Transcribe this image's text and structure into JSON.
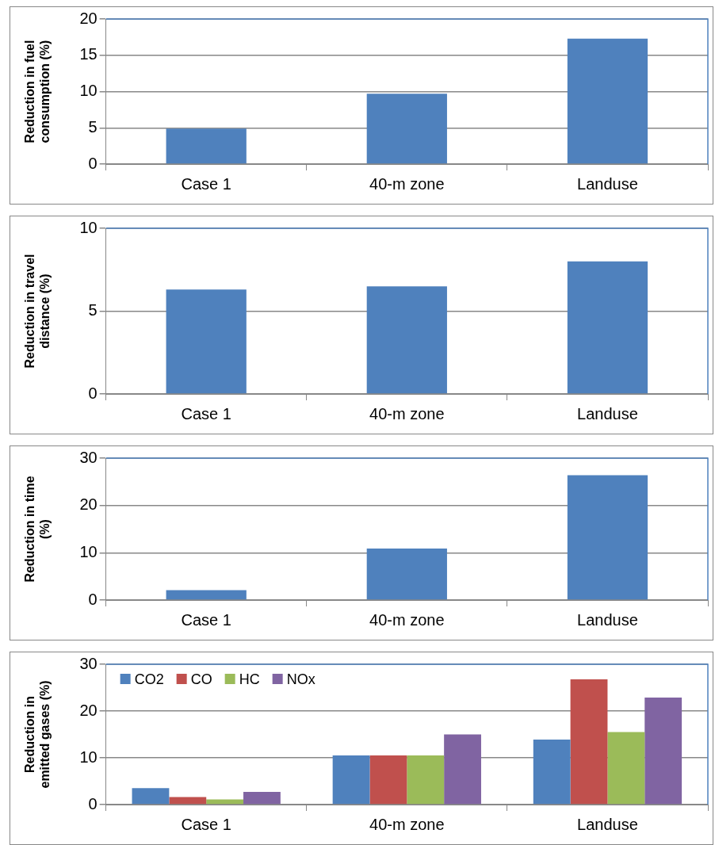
{
  "chart_data": [
    {
      "type": "bar",
      "ylabel": "Reduction in fuel consumption (%)",
      "categories": [
        "Case 1",
        "40-m zone",
        "Landuse"
      ],
      "values": [
        4.9,
        9.7,
        17.3
      ],
      "color": "#4f81bd",
      "ylim": [
        0,
        20
      ],
      "yticks": [
        0,
        5,
        10,
        15,
        20
      ],
      "grid": "y"
    },
    {
      "type": "bar",
      "ylabel": "Reduction in travel distance (%)",
      "categories": [
        "Case 1",
        "40-m zone",
        "Landuse"
      ],
      "values": [
        6.3,
        6.5,
        8.0
      ],
      "color": "#4f81bd",
      "ylim": [
        0,
        10
      ],
      "yticks": [
        0,
        5,
        10
      ],
      "grid": "y"
    },
    {
      "type": "bar",
      "ylabel": "Reduction in time (%)",
      "categories": [
        "Case 1",
        "40-m zone",
        "Landuse"
      ],
      "values": [
        2.1,
        10.9,
        26.4
      ],
      "color": "#4f81bd",
      "ylim": [
        0,
        30
      ],
      "yticks": [
        0,
        10,
        20,
        30
      ],
      "grid": "y"
    },
    {
      "type": "bar",
      "ylabel": "Reduction in emitted gases (%)",
      "categories": [
        "Case 1",
        "40-m zone",
        "Landuse"
      ],
      "ylim": [
        0,
        30
      ],
      "yticks": [
        0,
        10,
        20,
        30
      ],
      "grid": "y",
      "legend": "top left",
      "series": [
        {
          "name": "CO2",
          "color": "#4f81bd",
          "values": [
            3.5,
            10.5,
            13.9
          ]
        },
        {
          "name": "CO",
          "color": "#c0504d",
          "values": [
            1.6,
            10.5,
            26.8
          ]
        },
        {
          "name": "HC",
          "color": "#9bbb59",
          "values": [
            1.1,
            10.5,
            15.5
          ]
        },
        {
          "name": "NOx",
          "color": "#8064a2",
          "values": [
            2.7,
            15.0,
            22.9
          ]
        }
      ]
    }
  ]
}
